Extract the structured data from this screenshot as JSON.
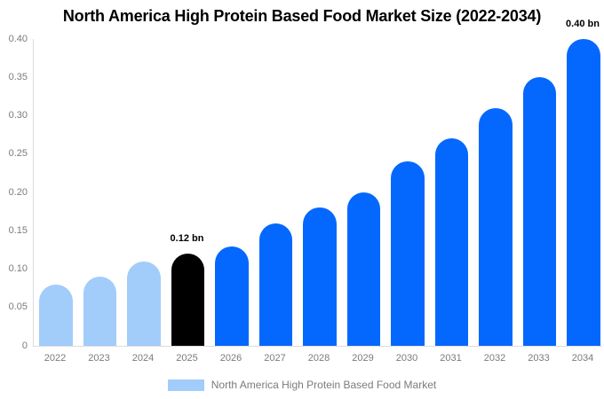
{
  "title": "North America High Protein Based Food Market Size (2022-2034)",
  "chart_data": {
    "type": "bar",
    "title": "North America High Protein Based Food Market Size (2022-2034)",
    "categories": [
      "2022",
      "2023",
      "2024",
      "2025",
      "2026",
      "2027",
      "2028",
      "2029",
      "2030",
      "2031",
      "2032",
      "2033",
      "2034"
    ],
    "values": [
      0.08,
      0.09,
      0.11,
      0.12,
      0.13,
      0.16,
      0.18,
      0.2,
      0.24,
      0.27,
      0.31,
      0.35,
      0.4
    ],
    "unit": "bn",
    "xlabel": "",
    "ylabel": "",
    "ylim": [
      0,
      0.4
    ],
    "ytick_labels": [
      "0.40",
      "0.35",
      "0.30",
      "0.25",
      "0.20",
      "0.15",
      "0.10",
      "0.05",
      "0"
    ],
    "ytick_values": [
      0.4,
      0.35,
      0.3,
      0.25,
      0.2,
      0.15,
      0.1,
      0.05,
      0
    ],
    "grid": "off",
    "legend_position": "bottom",
    "bar_colors": [
      "#a2ccfa",
      "#a2ccfa",
      "#a2ccfa",
      "#000000",
      "#0568fe",
      "#0568fe",
      "#0568fe",
      "#0568fe",
      "#0568fe",
      "#0568fe",
      "#0568fe",
      "#0568fe",
      "#0568fe"
    ],
    "annotations": [
      {
        "index": 3,
        "text": "0.12 bn"
      },
      {
        "index": 12,
        "text": "0.40 bn"
      }
    ]
  },
  "legend": {
    "label": "North America High Protein Based Food Market",
    "swatch_color": "#a2ccfa"
  },
  "colors": {
    "historical_bar": "#a2ccfa",
    "highlight_bar": "#000000",
    "forecast_bar": "#0568fe",
    "axis_text": "#7b7b7b",
    "axis_line": "#dcdcdc",
    "title_text": "#000000",
    "background": "#ffffff"
  }
}
